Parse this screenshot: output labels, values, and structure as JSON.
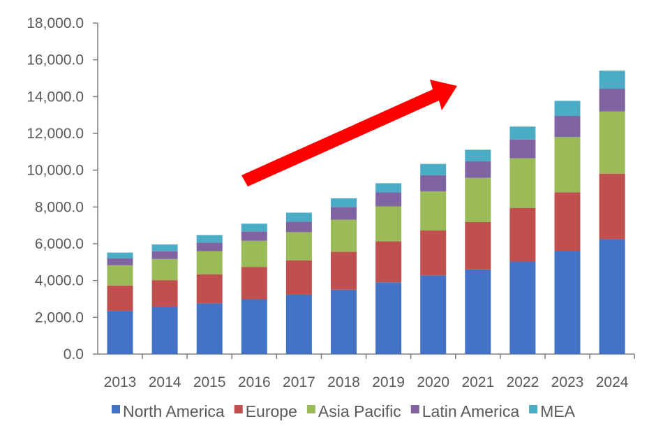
{
  "chart_data": {
    "type": "bar",
    "stacked": true,
    "categories": [
      "2013",
      "2014",
      "2015",
      "2016",
      "2017",
      "2018",
      "2019",
      "2020",
      "2021",
      "2022",
      "2023",
      "2024"
    ],
    "series": [
      {
        "name": "North America",
        "color": "#4472C4",
        "values": [
          2350,
          2580,
          2760,
          2980,
          3230,
          3500,
          3900,
          4280,
          4600,
          5030,
          5600,
          6250
        ]
      },
      {
        "name": "Europe",
        "color": "#C0504D",
        "values": [
          1380,
          1440,
          1580,
          1760,
          1870,
          2060,
          2230,
          2440,
          2580,
          2920,
          3200,
          3560
        ]
      },
      {
        "name": "Asia Pacific",
        "color": "#9BBB59",
        "values": [
          1100,
          1150,
          1250,
          1420,
          1530,
          1750,
          1900,
          2130,
          2400,
          2700,
          3000,
          3380
        ]
      },
      {
        "name": "Latin America",
        "color": "#8064A2",
        "values": [
          380,
          420,
          470,
          510,
          570,
          680,
          760,
          880,
          900,
          1020,
          1150,
          1240
        ]
      },
      {
        "name": "MEA",
        "color": "#4BACC6",
        "values": [
          310,
          370,
          410,
          420,
          490,
          480,
          500,
          610,
          630,
          700,
          820,
          980
        ]
      }
    ],
    "y_ticks": [
      "0.0",
      "2,000.0",
      "4,000.0",
      "6,000.0",
      "8,000.0",
      "10,000.0",
      "12,000.0",
      "14,000.0",
      "16,000.0",
      "18,000.0"
    ],
    "ylim": [
      0,
      18000
    ],
    "y_step": 2000,
    "grid": false,
    "legend": "bottom",
    "annotation": {
      "type": "trend-arrow",
      "color": "#FF0000"
    }
  }
}
